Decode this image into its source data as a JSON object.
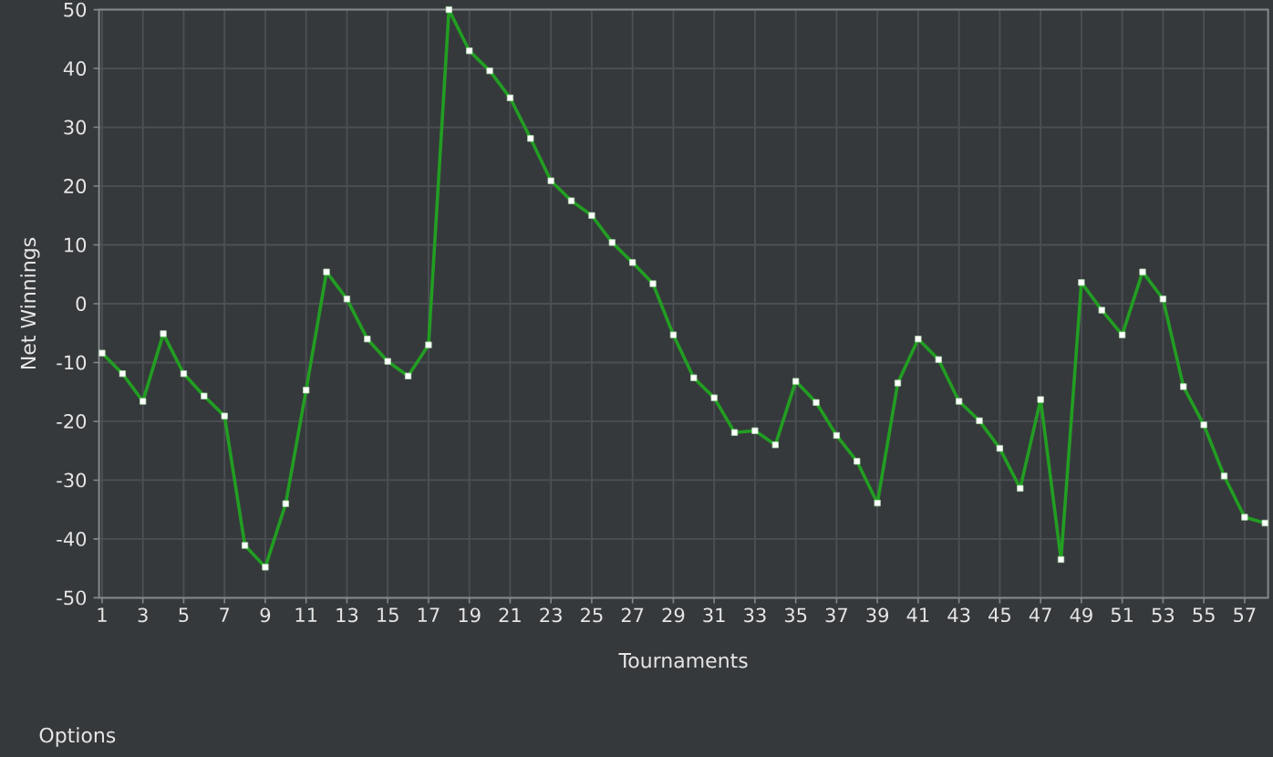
{
  "chart_data": {
    "type": "line",
    "xlabel": "Tournaments",
    "ylabel": "Net Winnings",
    "annotations": [
      "Options"
    ],
    "x": [
      1,
      2,
      3,
      4,
      5,
      6,
      7,
      8,
      9,
      10,
      11,
      12,
      13,
      14,
      15,
      16,
      17,
      18,
      19,
      20,
      21,
      22,
      23,
      24,
      25,
      26,
      27,
      28,
      29,
      30,
      31,
      32,
      33,
      34,
      35,
      36,
      37,
      38,
      39,
      40,
      41,
      42,
      43,
      44,
      45,
      46,
      47,
      48,
      49,
      50,
      51,
      52,
      53,
      54,
      55,
      56,
      57,
      58
    ],
    "values": [
      -8.4,
      -11.9,
      -16.6,
      -5.1,
      -11.9,
      -15.7,
      -19.1,
      -41.1,
      -44.8,
      -34.0,
      -14.7,
      5.4,
      0.8,
      -6.0,
      -9.8,
      -12.3,
      -7.0,
      50.0,
      43.0,
      39.6,
      35.0,
      28.1,
      20.9,
      17.5,
      15.0,
      10.4,
      7.0,
      3.4,
      -5.3,
      -12.6,
      -16.0,
      -21.9,
      -21.6,
      -24.0,
      -13.2,
      -16.8,
      -22.4,
      -26.8,
      -33.9,
      -13.5,
      -6.0,
      -9.5,
      -16.6,
      -19.9,
      -24.6,
      -31.4,
      -16.3,
      -43.5,
      3.6,
      -1.1,
      -5.3,
      5.4,
      0.8,
      -14.1,
      -20.6,
      -29.3,
      -36.3,
      -37.3
    ],
    "color": "#229e22",
    "marker": "square",
    "line_style": "solid",
    "xlim": [
      0.85,
      58.15
    ],
    "xticks": [
      1,
      3,
      5,
      7,
      9,
      11,
      13,
      15,
      17,
      19,
      21,
      23,
      25,
      27,
      29,
      31,
      33,
      35,
      37,
      39,
      41,
      43,
      45,
      47,
      49,
      51,
      53,
      55,
      57
    ],
    "ylim": [
      -50,
      50
    ],
    "yticks": [
      -50,
      -40,
      -30,
      -20,
      -10,
      0,
      10,
      20,
      30,
      40,
      50
    ],
    "grid": true
  }
}
